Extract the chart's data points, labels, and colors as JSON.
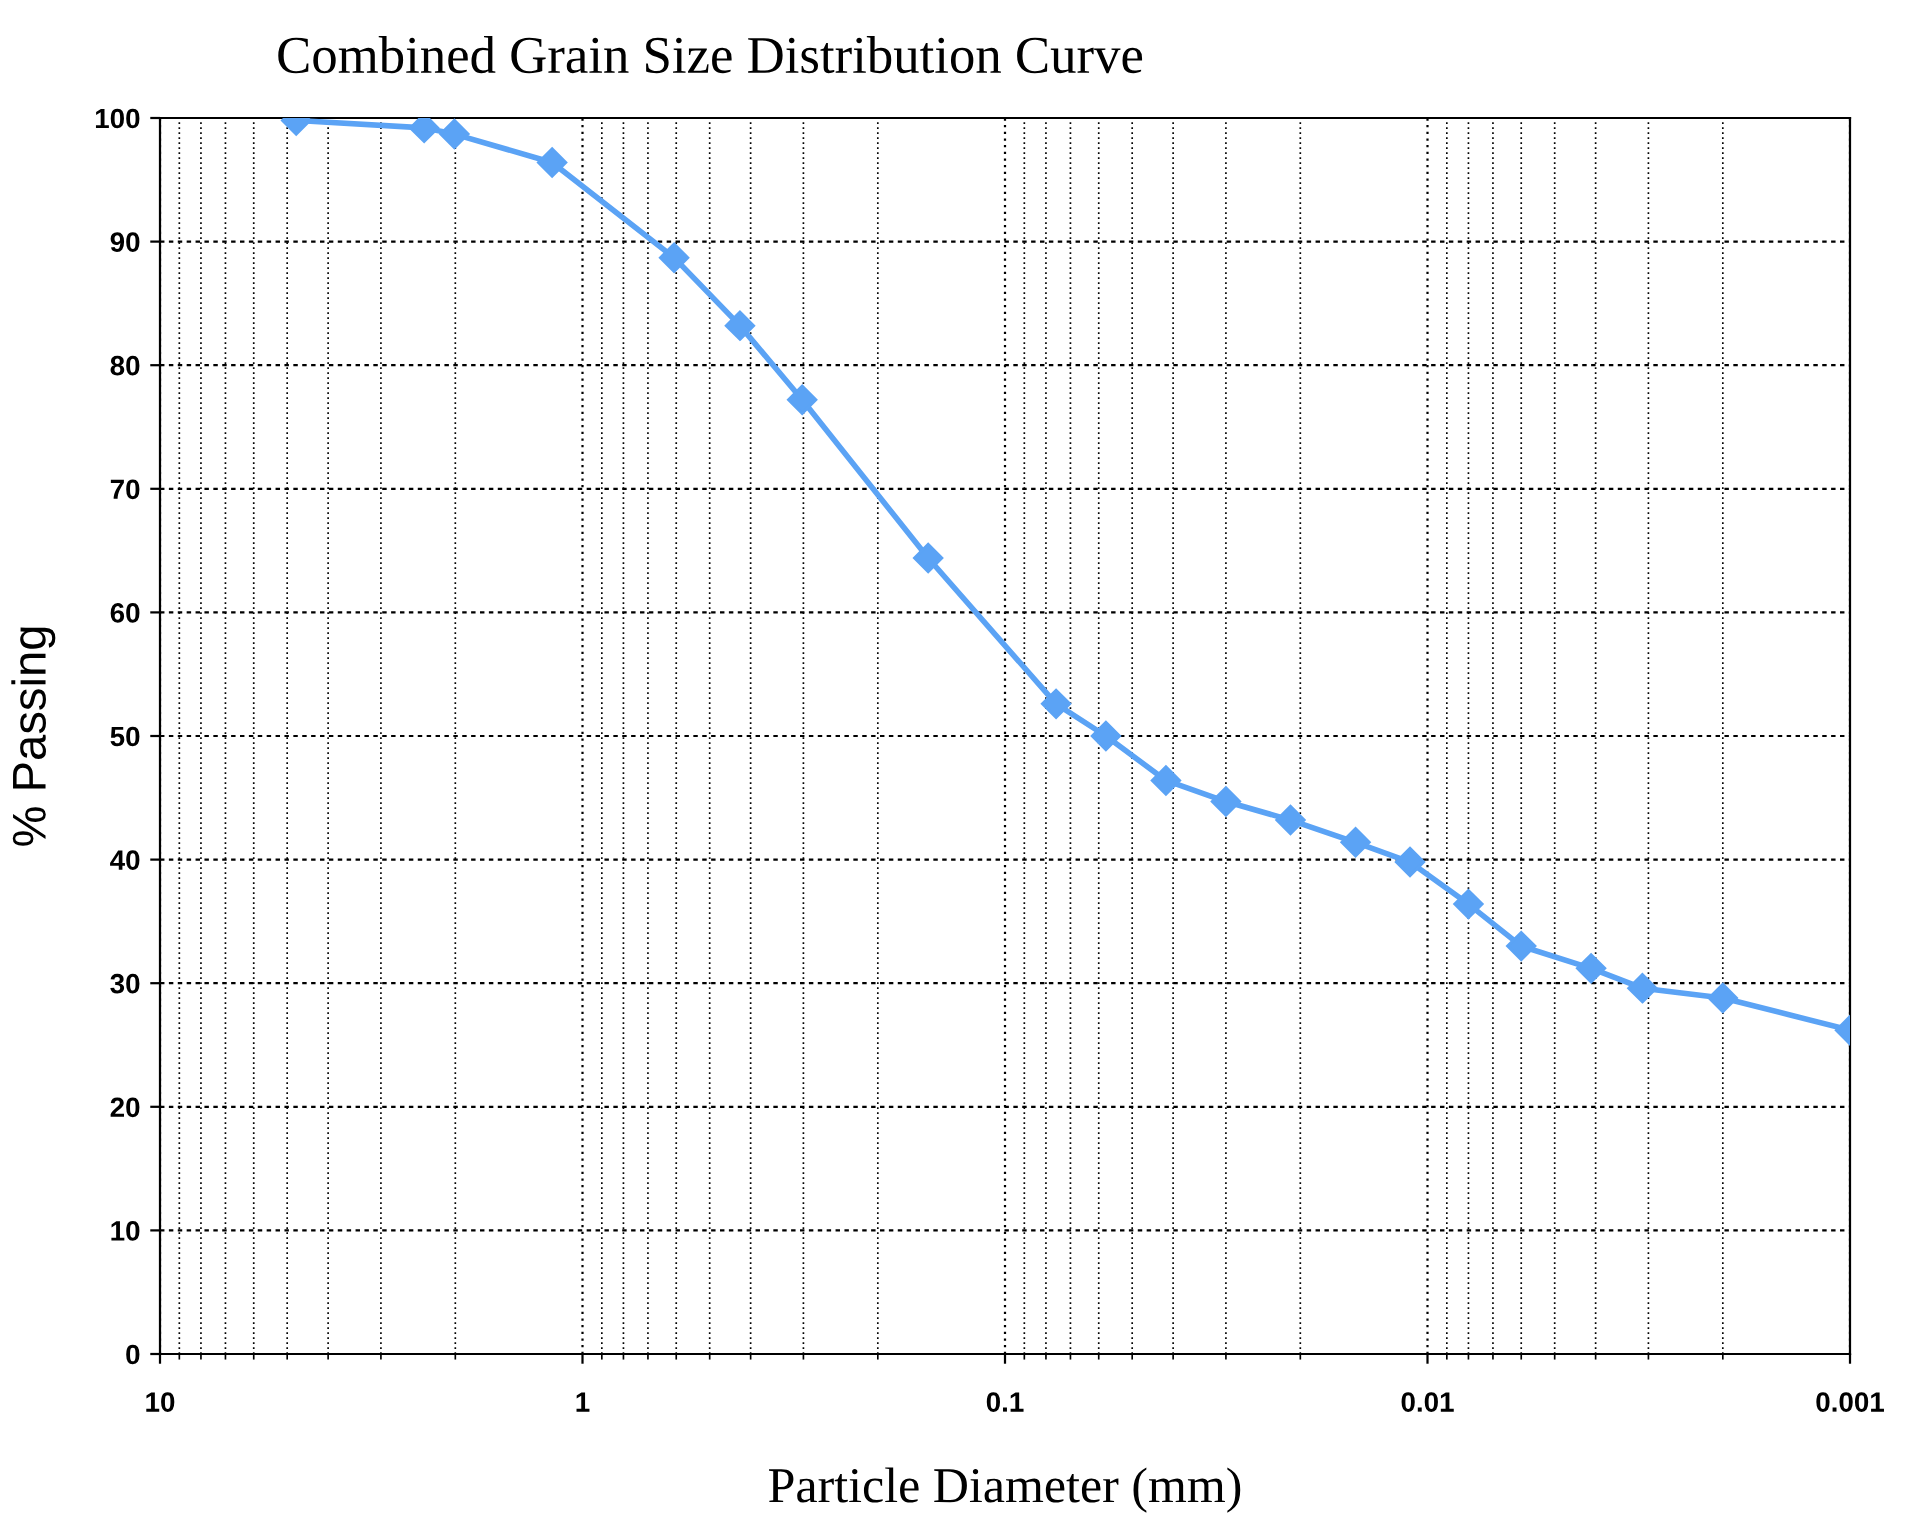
{
  "chart_data": {
    "type": "line",
    "title": "Combined Grain Size Distribution Curve",
    "xlabel": "Particle Diameter (mm)",
    "ylabel": "% Passing",
    "series": [
      {
        "color": "#5ba3f5",
        "x": [
          4.76,
          2.37,
          2.01,
          1.18,
          0.607,
          0.424,
          0.302,
          0.152,
          0.0757,
          0.0577,
          0.0416,
          0.03,
          0.0211,
          0.0148,
          0.011,
          0.008,
          0.006,
          0.0041,
          0.0031,
          0.002,
          0.001
        ],
        "values": [
          99.8,
          99.2,
          98.7,
          96.4,
          88.7,
          83.2,
          77.2,
          64.4,
          52.6,
          50.0,
          46.4,
          44.7,
          43.2,
          41.4,
          39.8,
          36.4,
          33.0,
          31.2,
          29.6,
          28.8,
          26.2
        ]
      }
    ],
    "log": "x",
    "xlim": [
      10,
      0.001
    ],
    "xticks": [
      10,
      1,
      0.1,
      0.01,
      0.001
    ],
    "ylim": [
      0,
      100
    ],
    "yticks": [
      0,
      10,
      20,
      30,
      40,
      50,
      60,
      70,
      80,
      90,
      100
    ],
    "grid": true,
    "marker": "diamond",
    "line_style": "solid"
  }
}
